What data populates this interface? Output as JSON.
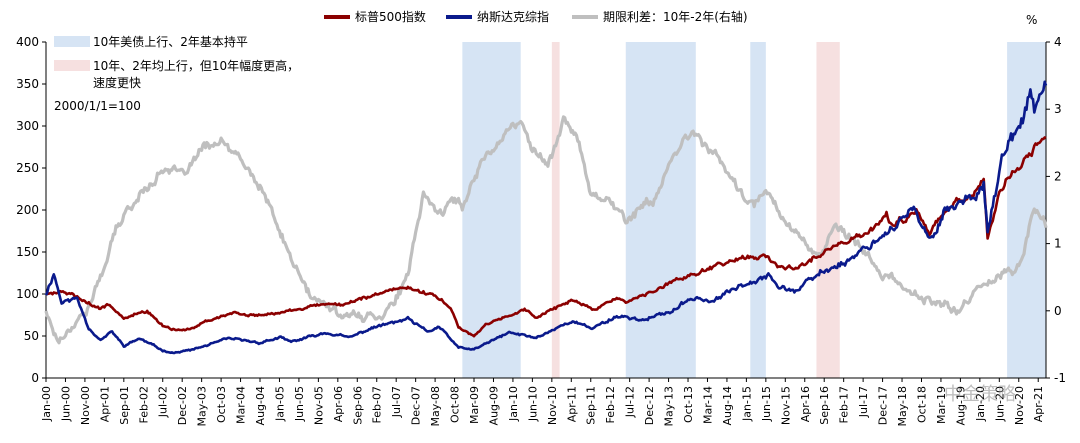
{
  "chart_data": {
    "type": "line",
    "legend_placement": "top",
    "series": [
      {
        "name": "标普500指数",
        "color": "#8B0000",
        "axis": "left"
      },
      {
        "name": "纳斯达克综指",
        "color": "#0A1A8C",
        "axis": "left"
      },
      {
        "name": "期限利差：10年-2年(右轴)",
        "color": "#BFBFBF",
        "axis": "right"
      }
    ],
    "left_axis": {
      "min": 0,
      "max": 400,
      "step": 50,
      "ticks": [
        "0",
        "50",
        "100",
        "150",
        "200",
        "250",
        "300",
        "350",
        "400"
      ]
    },
    "right_axis": {
      "min": -1,
      "max": 4,
      "step": 1,
      "unit": "%",
      "ticks": [
        "-1",
        "0",
        "1",
        "2",
        "3",
        "4"
      ]
    },
    "x_axis": {
      "start": "2000-01",
      "end": "2021-06",
      "label_step_months": 5,
      "ticks": [
        "Jan-00",
        "Jun-00",
        "Nov-00",
        "Apr-01",
        "Sep-01",
        "Feb-02",
        "Jul-02",
        "Dec-02",
        "May-03",
        "Oct-03",
        "Mar-04",
        "Aug-04",
        "Jan-05",
        "Jun-05",
        "Nov-05",
        "Apr-06",
        "Sep-06",
        "Feb-07",
        "Jul-07",
        "Dec-07",
        "May-08",
        "Oct-08",
        "Mar-09",
        "Aug-09",
        "Jan-10",
        "Jun-10",
        "Nov-10",
        "Apr-11",
        "Sep-11",
        "Feb-12",
        "Jul-12",
        "Dec-12",
        "May-13",
        "Oct-13",
        "Mar-14",
        "Aug-14",
        "Jan-15",
        "Jun-15",
        "Nov-15",
        "Apr-16",
        "Sep-16",
        "Feb-17",
        "Jul-17",
        "Dec-17",
        "May-18",
        "Oct-18",
        "Mar-19",
        "Aug-19",
        "Jan-20",
        "Jun-20",
        "Nov-20",
        "Apr-21"
      ]
    },
    "annotations": [
      {
        "text": "10年美债上行、2年基本持平",
        "swatch": "#D6E4F4"
      },
      {
        "text": "10年、2年均上行，但10年幅度更高，",
        "text2": "速度更快",
        "swatch": "#F6E0E0"
      },
      {
        "text": "2000/1/1=100"
      }
    ],
    "shaded_periods": [
      {
        "start": "2008-12",
        "end": "2010-03",
        "kind": "blue"
      },
      {
        "start": "2010-11",
        "end": "2011-01",
        "kind": "pink"
      },
      {
        "start": "2012-06",
        "end": "2013-12",
        "kind": "blue"
      },
      {
        "start": "2015-02",
        "end": "2015-06",
        "kind": "blue"
      },
      {
        "start": "2016-07",
        "end": "2017-01",
        "kind": "pink"
      },
      {
        "start": "2020-08",
        "end": "2021-06",
        "kind": "blue"
      }
    ],
    "sp500_anchors": [
      [
        "2000-01",
        100
      ],
      [
        "2000-03",
        103
      ],
      [
        "2000-09",
        98
      ],
      [
        "2001-03",
        82
      ],
      [
        "2001-05",
        88
      ],
      [
        "2001-09",
        72
      ],
      [
        "2002-03",
        80
      ],
      [
        "2002-07",
        62
      ],
      [
        "2002-10",
        57
      ],
      [
        "2003-03",
        59
      ],
      [
        "2003-06",
        68
      ],
      [
        "2004-01",
        78
      ],
      [
        "2004-08",
        73
      ],
      [
        "2005-03",
        80
      ],
      [
        "2006-01",
        88
      ],
      [
        "2006-06",
        87
      ],
      [
        "2007-01",
        98
      ],
      [
        "2007-07",
        105
      ],
      [
        "2007-10",
        108
      ],
      [
        "2008-05",
        98
      ],
      [
        "2008-09",
        84
      ],
      [
        "2008-11",
        60
      ],
      [
        "2009-03",
        50
      ],
      [
        "2009-06",
        64
      ],
      [
        "2010-04",
        82
      ],
      [
        "2010-07",
        72
      ],
      [
        "2011-04",
        93
      ],
      [
        "2011-10",
        80
      ],
      [
        "2012-04",
        96
      ],
      [
        "2012-06",
        90
      ],
      [
        "2013-01",
        103
      ],
      [
        "2013-06",
        115
      ],
      [
        "2013-12],",
        125
      ],
      [
        "2014-06",
        135
      ],
      [
        "2014-12",
        143
      ],
      [
        "2015-05",
        146
      ],
      [
        "2015-09",
        133
      ],
      [
        "2016-02",
        130
      ],
      [
        "2016-08",
        148
      ],
      [
        "2017-03",
        162
      ],
      [
        "2017-12",
        185
      ],
      [
        "2018-01",
        195
      ],
      [
        "2018-02",
        180
      ],
      [
        "2018-09",
        200
      ],
      [
        "2018-12",
        170
      ],
      [
        "2019-04",
        200
      ],
      [
        "2019-12",
        222
      ],
      [
        "2020-02",
        235
      ],
      [
        "2020-03",
        165
      ],
      [
        "2020-06",
        220
      ],
      [
        "2020-12",
        258
      ],
      [
        "2021-06",
        285
      ]
    ],
    "nasdaq_anchors": [
      [
        "2000-01",
        100
      ],
      [
        "2000-03",
        125
      ],
      [
        "2000-05",
        90
      ],
      [
        "2000-09",
        95
      ],
      [
        "2000-12",
        60
      ],
      [
        "2001-03",
        45
      ],
      [
        "2001-06",
        55
      ],
      [
        "2001-09",
        38
      ],
      [
        "2002-01",
        47
      ],
      [
        "2002-07",
        33
      ],
      [
        "2002-10",
        30
      ],
      [
        "2003-03",
        34
      ],
      [
        "2003-12],",
        47
      ],
      [
        "2004-08",
        42
      ],
      [
        "2005-01",
        48
      ],
      [
        "2005-04",
        43
      ],
      [
        "2006-01",
        54
      ],
      [
        "2006-07",
        48
      ],
      [
        "2007-01",
        60
      ],
      [
        "2007-10",
        70
      ],
      [
        "2008-03",
        55
      ],
      [
        "2008-06",
        61
      ],
      [
        "2008-11",
        36
      ],
      [
        "2009-03",
        34
      ],
      [
        "2009-12",
        54
      ],
      [
        "2010-07",
        48
      ],
      [
        "2011-04",
        68
      ],
      [
        "2011-09",
        59
      ],
      [
        "2012-04",
        74
      ],
      [
        "2012-11",
        69
      ],
      [
        "2013-06",
        80
      ],
      [
        "2013-12",
        97
      ],
      [
        "2014-04",
        90
      ],
      [
        "2014-12",
        112
      ],
      [
        "2015-07",
        125
      ],
      [
        "2015-09",
        108
      ],
      [
        "2016-02",
        104
      ],
      [
        "2016-08",
        125
      ],
      [
        "2017-03",
        140
      ],
      [
        "2017-12",
        170
      ],
      [
        "2018-08",
        200
      ],
      [
        "2018-12",
        162
      ],
      [
        "2019-04",
        200
      ],
      [
        "2019-12",
        218
      ],
      [
        "2020-02",
        236
      ],
      [
        "2020-03",
        175
      ],
      [
        "2020-07",
        265
      ],
      [
        "2020-12",
        305
      ],
      [
        "2021-02",
        340
      ],
      [
        "2021-03",
        322
      ],
      [
        "2021-06",
        345
      ]
    ],
    "spread_anchors": [
      [
        "2000-01",
        0
      ],
      [
        "2000-04",
        -0.45
      ],
      [
        "2000-12",
        0.05
      ],
      [
        "2001-03",
        0.5
      ],
      [
        "2001-07",
        1.2
      ],
      [
        "2001-10",
        1.5
      ],
      [
        "2002-03",
        1.85
      ],
      [
        "2002-08",
        2.15
      ],
      [
        "2002-12",
        2.0
      ],
      [
        "2003-06",
        2.45
      ],
      [
        "2003-10",
        2.5
      ],
      [
        "2004-03",
        2.25
      ],
      [
        "2004-09",
        1.75
      ],
      [
        "2005-03",
        0.9
      ],
      [
        "2005-09",
        0.2
      ],
      [
        "2006-03",
        0.0
      ],
      [
        "2006-09",
        -0.1
      ],
      [
        "2007-03",
        -0.05
      ],
      [
        "2007-06",
        0.1
      ],
      [
        "2007-10",
        0.5
      ],
      [
        "2008-02",
        1.75
      ],
      [
        "2008-04",
        1.6
      ],
      [
        "2008-06",
        1.45
      ],
      [
        "2008-10",
        1.65
      ],
      [
        "2008-12",
        1.55
      ],
      [
        "2009-05",
        2.25
      ],
      [
        "2009-12",
        2.7
      ],
      [
        "2010-03",
        2.8
      ],
      [
        "2010-06",
        2.45
      ],
      [
        "2010-10",
        2.15
      ],
      [
        "2011-02",
        2.85
      ],
      [
        "2011-06",
        2.5
      ],
      [
        "2011-09",
        1.75
      ],
      [
        "2012-01",
        1.7
      ],
      [
        "2012-06",
        1.35
      ],
      [
        "2012-09",
        1.5
      ],
      [
        "2013-01",
        1.65
      ],
      [
        "2013-09",
        2.55
      ],
      [
        "2013-12",
        2.65
      ],
      [
        "2014-06",
        2.25
      ],
      [
        "2014-12",
        1.7
      ],
      [
        "2015-03",
        1.55
      ],
      [
        "2015-06",
        1.8
      ],
      [
        "2016-01",
        1.2
      ],
      [
        "2016-08",
        0.8
      ],
      [
        "2016-12",
        1.25
      ],
      [
        "2017-06",
        0.95
      ],
      [
        "2017-12",
        0.55
      ],
      [
        "2018-08",
        0.25
      ],
      [
        "2018-12",
        0.15
      ],
      [
        "2019-05",
        0.05
      ],
      [
        "2019-08",
        0.0
      ],
      [
        "2019-12",
        0.3
      ],
      [
        "2020-03",
        0.45
      ],
      [
        "2020-06",
        0.55
      ],
      [
        "2020-10",
        0.6
      ],
      [
        "2020-12",
        0.8
      ],
      [
        "2021-03",
        1.55
      ],
      [
        "2021-06",
        1.3
      ]
    ]
  },
  "watermark": "中金策略"
}
